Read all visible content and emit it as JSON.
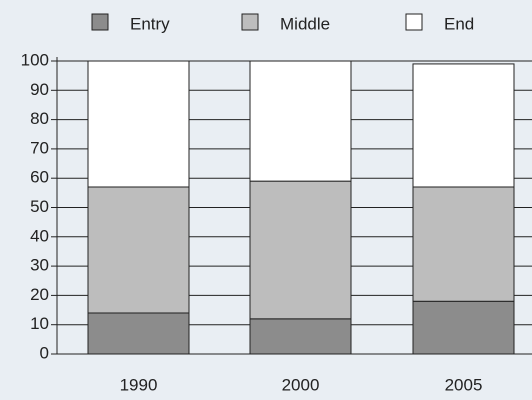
{
  "chart_data": {
    "type": "stacked_bar",
    "categories": [
      "1990",
      "2000",
      "2005"
    ],
    "series": [
      {
        "name": "Entry",
        "color": "#8c8c8c",
        "values": [
          14,
          12,
          18
        ]
      },
      {
        "name": "Middle",
        "color": "#bdbdbd",
        "values": [
          43,
          47,
          39
        ]
      },
      {
        "name": "End",
        "color": "#ffffff",
        "values": [
          43,
          41,
          42
        ]
      }
    ],
    "ylim": [
      0,
      100
    ],
    "yticks": [
      0,
      10,
      20,
      30,
      40,
      50,
      60,
      70,
      80,
      90,
      100
    ],
    "grid": true,
    "legend": "top"
  }
}
